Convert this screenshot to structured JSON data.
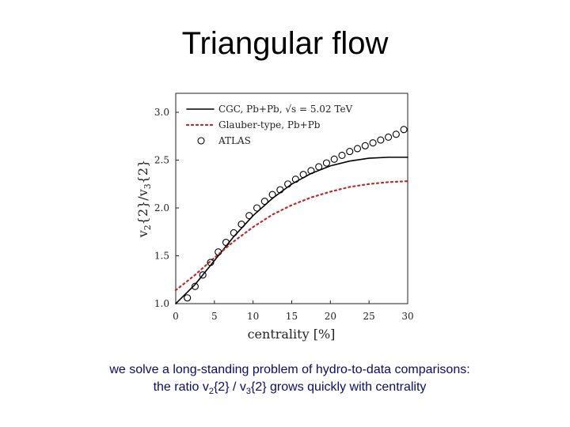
{
  "title": "Triangular flow",
  "caption": {
    "line1": "we solve a long-standing problem of hydro-to-data comparisons:",
    "line2": [
      "the ratio v",
      "2",
      "{2} / v",
      "3",
      "{2} grows quickly with centrality"
    ]
  },
  "chart_data": {
    "type": "line",
    "xlabel": "centrality [%]",
    "ylabel": [
      "v",
      "2",
      "{2}/v",
      "3",
      "{2}"
    ],
    "xlim": [
      0,
      30
    ],
    "ylim": [
      1.0,
      3.0
    ],
    "xticks": [
      0,
      5,
      10,
      15,
      20,
      25,
      30
    ],
    "yticks": [
      {
        "value": 1,
        "label": "1.0"
      },
      {
        "value": 1.5,
        "label": "1.5"
      },
      {
        "value": 2,
        "label": "2.0"
      },
      {
        "value": 2.5,
        "label": "2.5"
      },
      {
        "value": 3,
        "label": "3.0"
      }
    ],
    "legend": "upper left",
    "series": [
      {
        "name": "CGC, Pb+Pb, √s = 5.02 TeV",
        "color": "#000000",
        "style": "solid",
        "x": [
          0,
          2.5,
          5,
          7.5,
          10,
          12.5,
          15,
          17.5,
          20,
          22.5,
          25,
          27.5,
          30
        ],
        "values": [
          1.0,
          1.2,
          1.45,
          1.7,
          1.92,
          2.1,
          2.25,
          2.36,
          2.44,
          2.49,
          2.52,
          2.53,
          2.53
        ]
      },
      {
        "name": "Glauber-type, Pb+Pb",
        "color": "#c0282a",
        "style": "dotted",
        "x": [
          0,
          2.5,
          5,
          7.5,
          10,
          12.5,
          15,
          17.5,
          20,
          22.5,
          25,
          27.5,
          30
        ],
        "values": [
          1.14,
          1.3,
          1.48,
          1.65,
          1.8,
          1.93,
          2.03,
          2.11,
          2.17,
          2.22,
          2.25,
          2.27,
          2.28
        ]
      },
      {
        "name": "ATLAS",
        "color": "#000000",
        "style": "markers",
        "x": [
          1.5,
          2.5,
          3.5,
          4.5,
          5.5,
          6.5,
          7.5,
          8.5,
          9.5,
          10.5,
          11.5,
          12.5,
          13.5,
          14.5,
          15.5,
          16.5,
          17.5,
          18.5,
          19.5,
          20.5,
          21.5,
          22.5,
          23.5,
          24.5,
          25.5,
          26.5,
          27.5,
          28.5,
          29.5
        ],
        "values": [
          1.06,
          1.18,
          1.3,
          1.43,
          1.54,
          1.64,
          1.74,
          1.83,
          1.92,
          2.0,
          2.07,
          2.14,
          2.19,
          2.25,
          2.3,
          2.35,
          2.39,
          2.43,
          2.47,
          2.51,
          2.55,
          2.59,
          2.62,
          2.65,
          2.68,
          2.71,
          2.74,
          2.77,
          2.82
        ]
      }
    ]
  }
}
